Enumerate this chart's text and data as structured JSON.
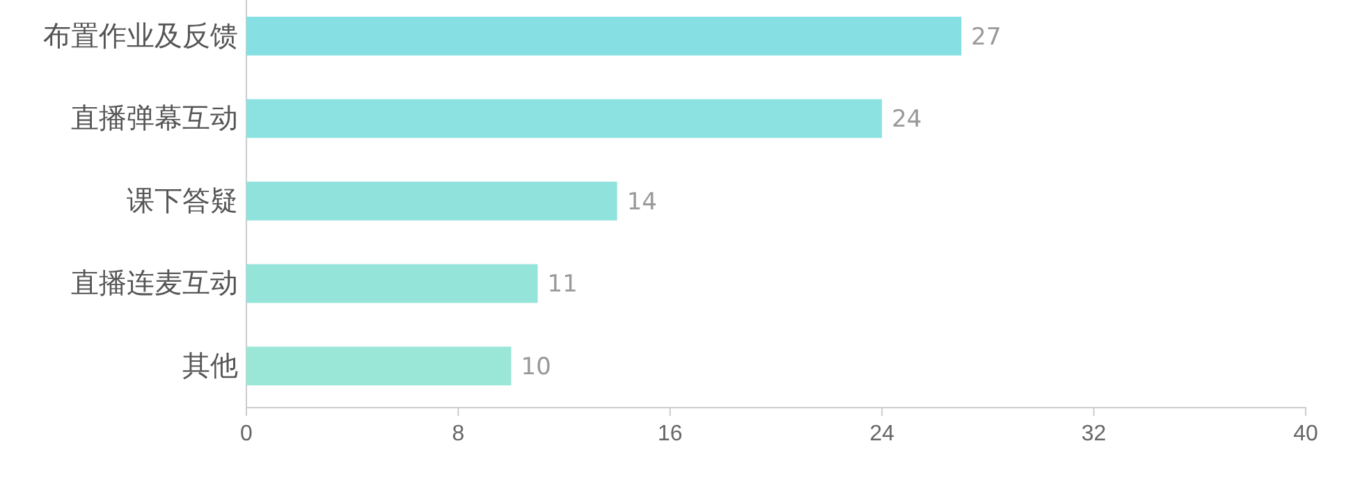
{
  "chart_data": {
    "type": "bar",
    "orientation": "horizontal",
    "categories": [
      "布置作业及反馈",
      "直播弹幕互动",
      "课下答疑",
      "直播连麦互动",
      "其他"
    ],
    "values": [
      27,
      24,
      14,
      11,
      10
    ],
    "colors": [
      "#86e0e3",
      "#8be2e1",
      "#90e2dd",
      "#95e4da",
      "#9ae7d7"
    ],
    "xlim": [
      0,
      40
    ],
    "xticks": [
      0,
      8,
      16,
      24,
      32,
      40
    ],
    "data_labels": true
  }
}
